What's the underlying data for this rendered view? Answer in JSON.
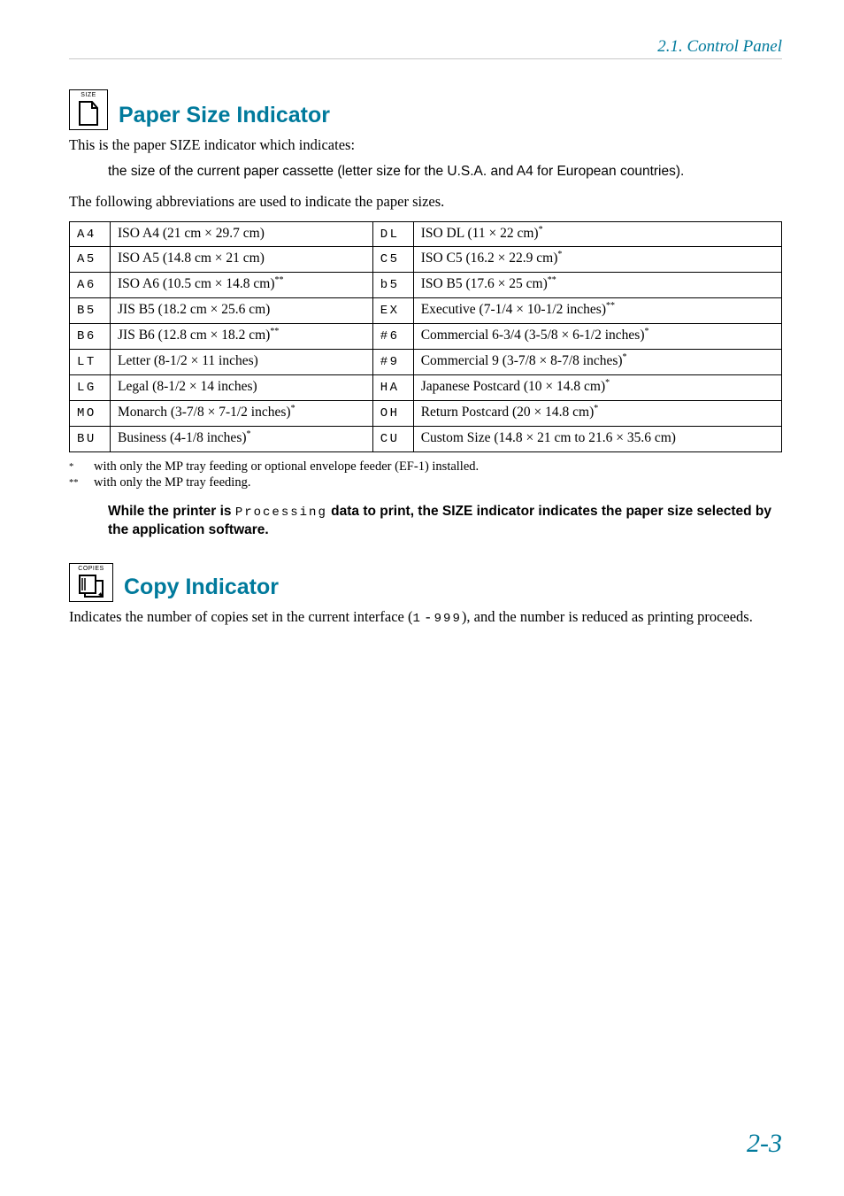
{
  "colors": {
    "accent": "#007a9c",
    "rule": "#c8c8c8",
    "text": "#000000",
    "bg": "#ffffff"
  },
  "running_head": "2.1.  Control Panel",
  "page_number": "2-3",
  "section1": {
    "icon_label": "SIZE",
    "title": "Paper Size Indicator",
    "intro": "This is the paper SIZE indicator which indicates:",
    "bullet": "the size of the current paper cassette (letter size for the U.S.A. and A4 for European countries).",
    "lead": "The following abbreviations are used to indicate the paper sizes.",
    "table": {
      "rows": [
        {
          "c1": "A4",
          "d1": "ISO A4 (21 cm × 29.7 cm)",
          "s1": "",
          "c2": "DL",
          "d2": "ISO DL (11 × 22 cm)",
          "s2": "*"
        },
        {
          "c1": "A5",
          "d1": "ISO A5 (14.8 cm × 21 cm)",
          "s1": "",
          "c2": "C5",
          "d2": "ISO C5 (16.2 × 22.9 cm)",
          "s2": "*"
        },
        {
          "c1": "A6",
          "d1": "ISO A6 (10.5 cm × 14.8 cm)",
          "s1": "**",
          "c2": "b5",
          "d2": "ISO B5 (17.6 × 25 cm)",
          "s2": "**"
        },
        {
          "c1": "B5",
          "d1": "JIS B5 (18.2 cm × 25.6 cm)",
          "s1": "",
          "c2": "EX",
          "d2": "Executive (7-1/4 × 10-1/2 inches)",
          "s2": "**"
        },
        {
          "c1": "B6",
          "d1": "JIS B6 (12.8 cm × 18.2 cm)",
          "s1": "**",
          "c2": "#6",
          "d2": "Commercial 6-3/4 (3-5/8 × 6-1/2 inches)",
          "s2": "*"
        },
        {
          "c1": "LT",
          "d1": "Letter (8-1/2 × 11 inches)",
          "s1": "",
          "c2": "#9",
          "d2": "Commercial 9 (3-7/8 × 8-7/8 inches)",
          "s2": "*"
        },
        {
          "c1": "LG",
          "d1": "Legal (8-1/2 × 14 inches)",
          "s1": "",
          "c2": "HA",
          "d2": "Japanese Postcard (10 × 14.8 cm)",
          "s2": "*"
        },
        {
          "c1": "MO",
          "d1": "Monarch (3-7/8 × 7-1/2 inches)",
          "s1": "*",
          "c2": "OH",
          "d2": "Return Postcard (20 × 14.8 cm)",
          "s2": "*"
        },
        {
          "c1": "BU",
          "d1": "Business (4-1/8 inches)",
          "s1": "*",
          "c2": "CU",
          "d2": "Custom Size (14.8 × 21 cm to 21.6 × 35.6 cm)",
          "s2": ""
        }
      ]
    },
    "footnote1_mark": "*",
    "footnote1": "with only the MP tray feeding or optional envelope feeder (EF-1) installed.",
    "footnote2_mark": "**",
    "footnote2": "with only the MP tray feeding.",
    "note_a": "While the printer is ",
    "note_mono": "Processing",
    "note_b": " data to print, the SIZE indicator indicates the paper size selected by the application software."
  },
  "section2": {
    "icon_label": "COPIES",
    "title": "Copy Indicator",
    "body_a": "Indicates the number of copies set in the current interface (",
    "body_mono1": "1",
    "body_dash": " - ",
    "body_mono2": "999",
    "body_b": "), and the number is reduced as printing proceeds."
  }
}
